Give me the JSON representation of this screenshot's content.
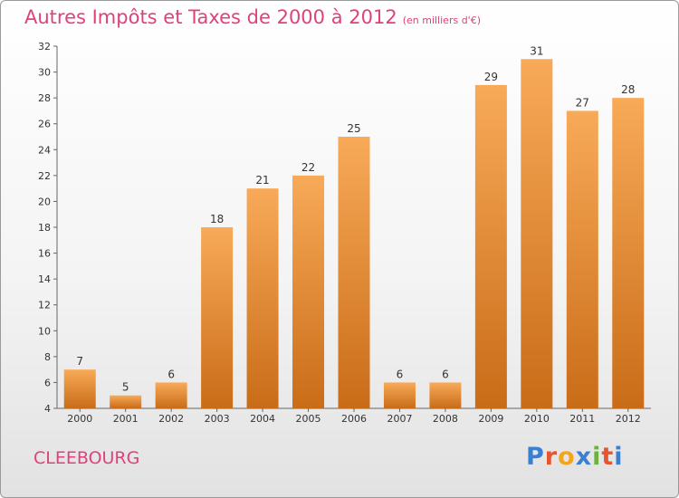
{
  "header": {
    "title": "Autres Impôts et Taxes de 2000 à 2012",
    "subtitle": "(en milliers d'€)"
  },
  "commune": "CLEEBOURG",
  "brand": {
    "letters": [
      "P",
      "r",
      "o",
      "x",
      "i",
      "t",
      "i"
    ],
    "colors": [
      "#3a7fd0",
      "#e8542e",
      "#f3a51d",
      "#3a7fd0",
      "#6bb33a",
      "#e8542e",
      "#3a7fd0"
    ]
  },
  "colors": {
    "bar_top": "#f8aa58",
    "bar_bottom": "#c96c18",
    "title": "#e0417c"
  },
  "chart_data": {
    "type": "bar",
    "categories": [
      "2000",
      "2001",
      "2002",
      "2003",
      "2004",
      "2005",
      "2006",
      "2007",
      "2008",
      "2009",
      "2010",
      "2011",
      "2012"
    ],
    "values": [
      7,
      5,
      6,
      18,
      21,
      22,
      25,
      6,
      6,
      29,
      31,
      27,
      28
    ],
    "ylim": [
      4,
      32
    ],
    "yticks": [
      "4",
      "6",
      "8",
      "10",
      "12",
      "14",
      "16",
      "18",
      "20",
      "22",
      "24",
      "26",
      "28",
      "30",
      "32"
    ],
    "grid": false,
    "xlabel": "",
    "ylabel": ""
  }
}
